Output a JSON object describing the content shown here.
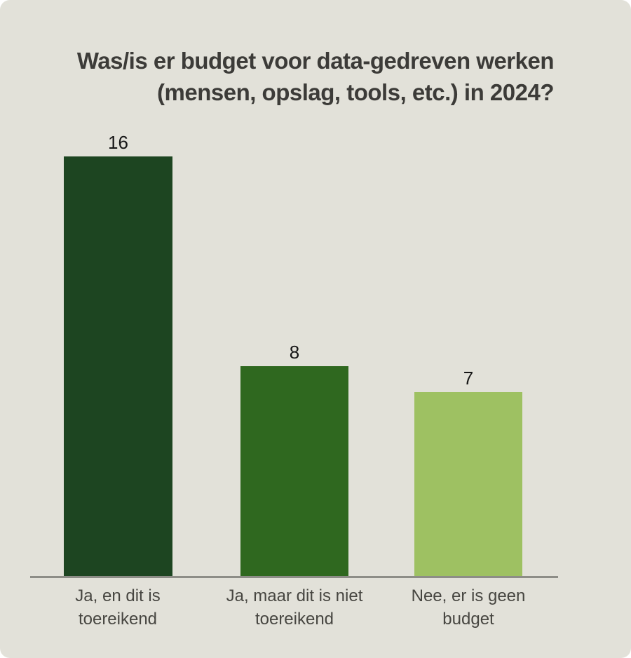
{
  "title": {
    "line1": "Was/is er budget voor data-gedreven werken",
    "line2": "(mensen, opslag, tools, etc.) in 2024?"
  },
  "chart_data": {
    "type": "bar",
    "title": "Was/is er budget voor data-gedreven werken (mensen, opslag, tools, etc.) in 2024?",
    "categories": [
      "Ja, en dit is toereikend",
      "Ja, maar dit is niet toereikend",
      "Nee, er is geen budget"
    ],
    "category_lines": [
      [
        "Ja, en dit is",
        "toereikend"
      ],
      [
        "Ja, maar dit is niet",
        "toereikend"
      ],
      [
        "Nee, er is geen",
        "budget"
      ]
    ],
    "values": [
      16,
      8,
      7
    ],
    "value_labels": [
      "16",
      "8",
      "7"
    ],
    "colors": [
      "#1d4521",
      "#2f681f",
      "#9ec162"
    ],
    "background_color": "#e2e1d9",
    "axis_line_color": "#8d8d87",
    "xlabel": "",
    "ylabel": "",
    "ylim": [
      0,
      16
    ],
    "grid": false,
    "legend_position": "none"
  }
}
